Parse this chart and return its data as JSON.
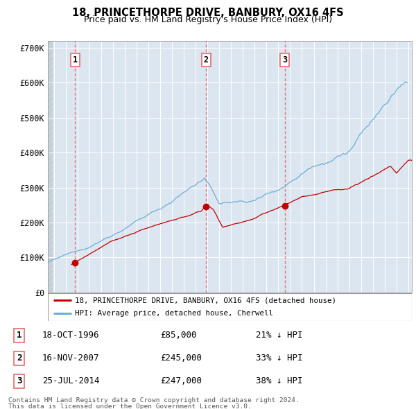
{
  "title": "18, PRINCETHORPE DRIVE, BANBURY, OX16 4FS",
  "subtitle": "Price paid vs. HM Land Registry's House Price Index (HPI)",
  "ylim": [
    0,
    720000
  ],
  "yticks": [
    0,
    100000,
    200000,
    300000,
    400000,
    500000,
    600000,
    700000
  ],
  "ytick_labels": [
    "£0",
    "£100K",
    "£200K",
    "£300K",
    "£400K",
    "£500K",
    "£600K",
    "£700K"
  ],
  "xlim_start": 1994.5,
  "xlim_end": 2025.3,
  "hpi_color": "#6baed6",
  "price_color": "#c00000",
  "vline_color": "#e06060",
  "sale_points": [
    {
      "year": 1996.8,
      "price": 85000,
      "label": "1"
    },
    {
      "year": 2007.88,
      "price": 245000,
      "label": "2"
    },
    {
      "year": 2014.56,
      "price": 247000,
      "label": "3"
    }
  ],
  "legend_entries": [
    {
      "label": "18, PRINCETHORPE DRIVE, BANBURY, OX16 4FS (detached house)",
      "color": "#c00000"
    },
    {
      "label": "HPI: Average price, detached house, Cherwell",
      "color": "#6baed6"
    }
  ],
  "table_rows": [
    {
      "num": "1",
      "date": "18-OCT-1996",
      "price": "£85,000",
      "hpi": "21% ↓ HPI"
    },
    {
      "num": "2",
      "date": "16-NOV-2007",
      "price": "£245,000",
      "hpi": "33% ↓ HPI"
    },
    {
      "num": "3",
      "date": "25-JUL-2014",
      "price": "£247,000",
      "hpi": "38% ↓ HPI"
    }
  ],
  "footnote": "Contains HM Land Registry data © Crown copyright and database right 2024.\nThis data is licensed under the Open Government Licence v3.0.",
  "plot_bg_color": "#dce6f1",
  "grid_color": "#ffffff",
  "hatch_color": "#c8d0d8"
}
